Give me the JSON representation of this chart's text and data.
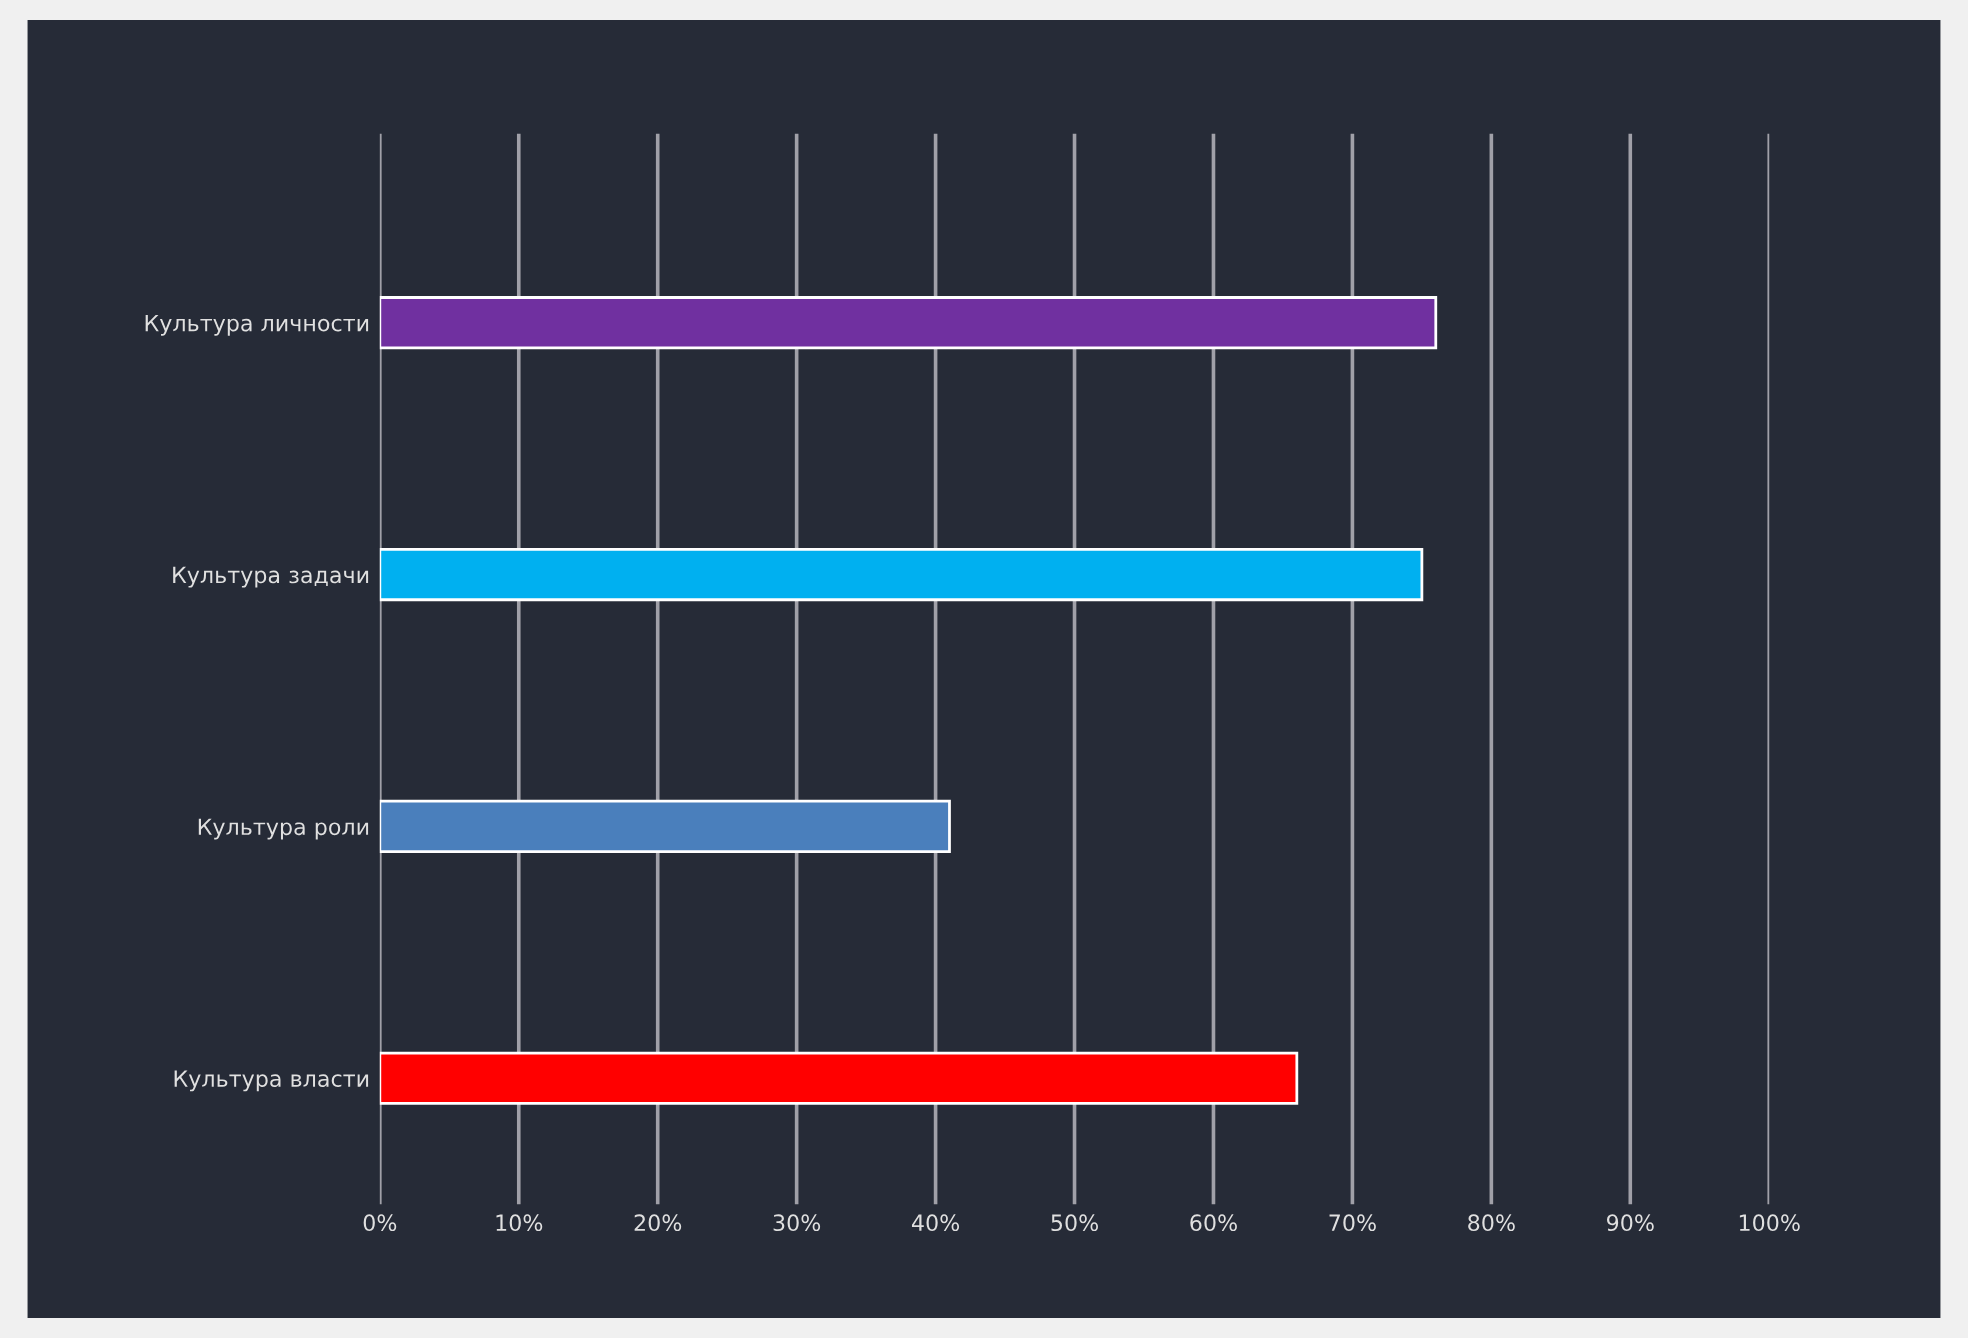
{
  "chart_data": {
    "type": "bar",
    "orientation": "horizontal",
    "categories": [
      "Культура личности",
      "Культура задачи",
      "Культура роли",
      "Культура власти"
    ],
    "values": [
      76,
      75,
      41,
      66
    ],
    "colors": [
      "#7030a0",
      "#00b0f0",
      "#4a7fbc",
      "#ff0000"
    ],
    "xlim": [
      0,
      100
    ],
    "xticks": [
      {
        "value": 0,
        "label": "0%"
      },
      {
        "value": 10,
        "label": "10%"
      },
      {
        "value": 20,
        "label": "20%"
      },
      {
        "value": 30,
        "label": "30%"
      },
      {
        "value": 40,
        "label": "40%"
      },
      {
        "value": 50,
        "label": "50%"
      },
      {
        "value": 60,
        "label": "60%"
      },
      {
        "value": 70,
        "label": "70%"
      },
      {
        "value": 80,
        "label": "80%"
      },
      {
        "value": 90,
        "label": "90%"
      },
      {
        "value": 100,
        "label": "100%"
      }
    ],
    "grid": "x"
  }
}
